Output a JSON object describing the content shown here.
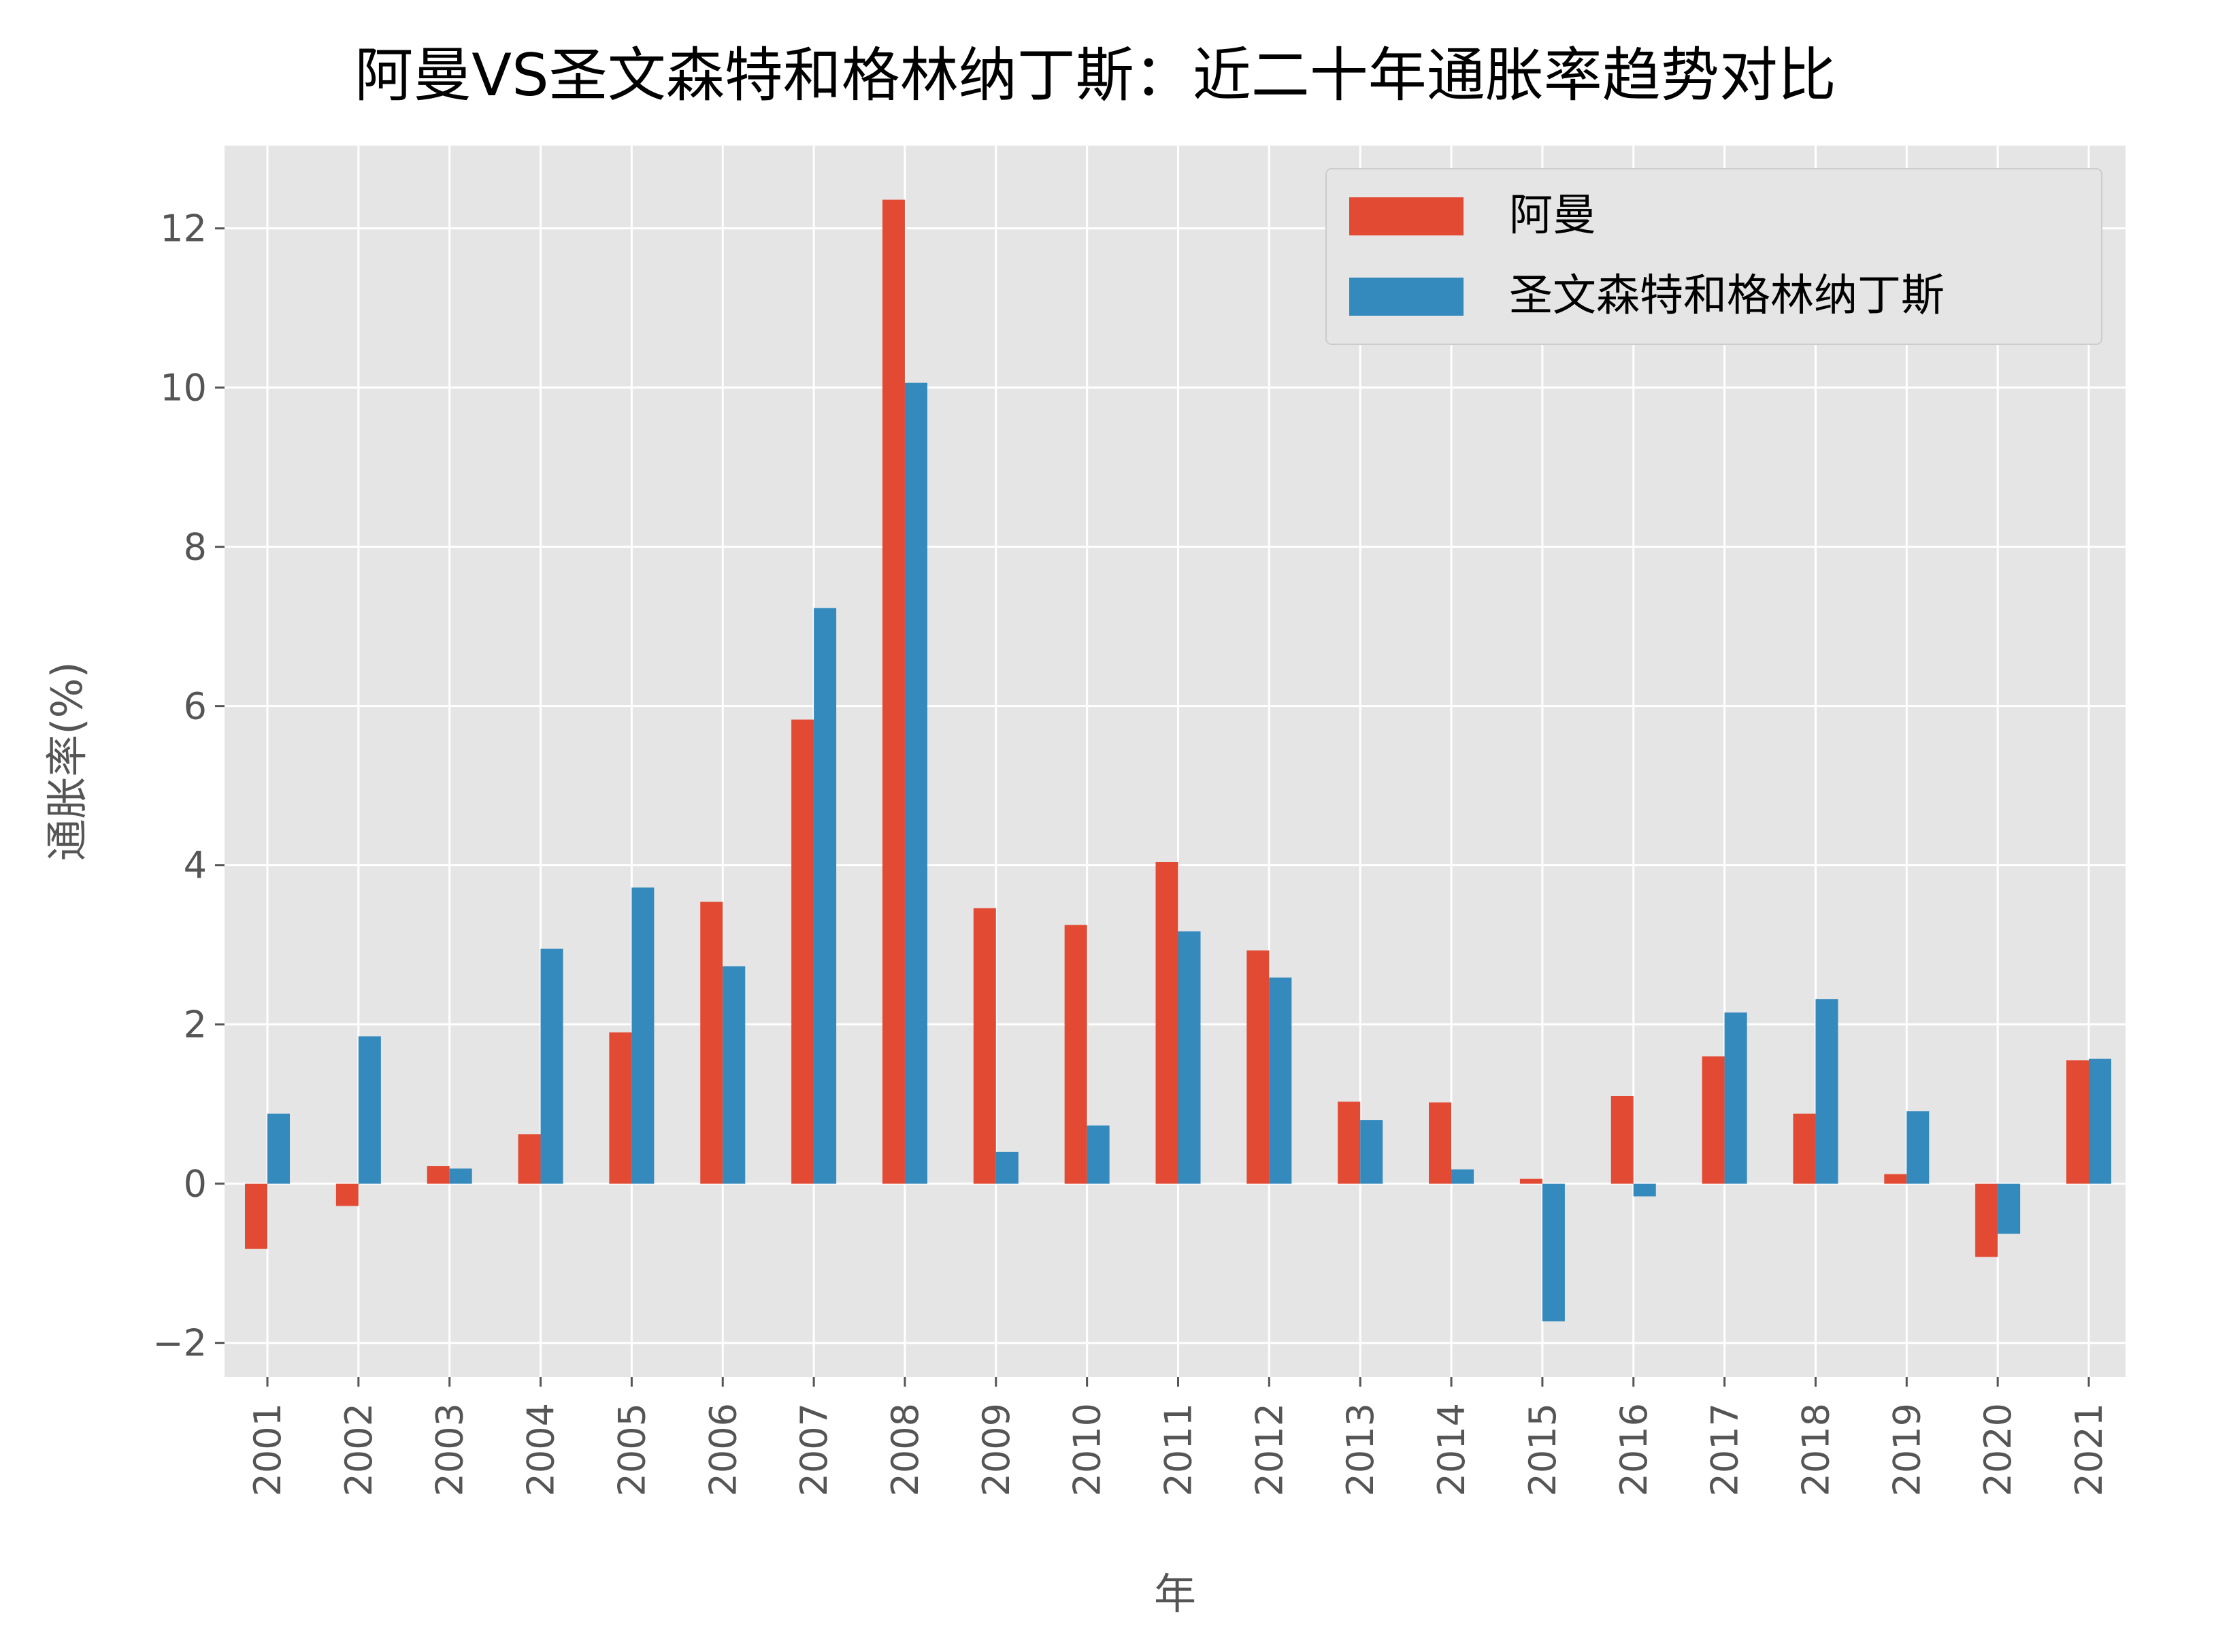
{
  "chart_data": {
    "type": "bar",
    "title": "阿曼VS圣文森特和格林纳丁斯：近二十年通胀率趋势对比",
    "xlabel": "年",
    "ylabel": "通胀率(%)",
    "categories": [
      "2001",
      "2002",
      "2003",
      "2004",
      "2005",
      "2006",
      "2007",
      "2008",
      "2009",
      "2010",
      "2011",
      "2012",
      "2013",
      "2014",
      "2015",
      "2016",
      "2017",
      "2018",
      "2019",
      "2020",
      "2021"
    ],
    "series": [
      {
        "name": "阿曼",
        "color": "#E24A33",
        "values": [
          -0.82,
          -0.28,
          0.22,
          0.62,
          1.9,
          3.54,
          5.83,
          12.36,
          3.46,
          3.25,
          4.04,
          2.93,
          1.03,
          1.02,
          0.06,
          1.1,
          1.6,
          0.88,
          0.12,
          -0.92,
          1.55
        ]
      },
      {
        "name": "圣文森特和格林纳丁斯",
        "color": "#348ABD",
        "values": [
          0.88,
          1.85,
          0.19,
          2.95,
          3.72,
          2.73,
          7.23,
          10.06,
          0.4,
          0.73,
          3.17,
          2.59,
          0.8,
          0.18,
          -1.73,
          -0.16,
          2.15,
          2.32,
          0.91,
          -0.63,
          1.57
        ]
      }
    ],
    "yticks": [
      -2,
      0,
      2,
      4,
      6,
      8,
      10,
      12
    ],
    "ylim": [
      -2.43,
      13.04
    ],
    "grid": true,
    "legend_position": "top-right",
    "style": "ggplot"
  }
}
